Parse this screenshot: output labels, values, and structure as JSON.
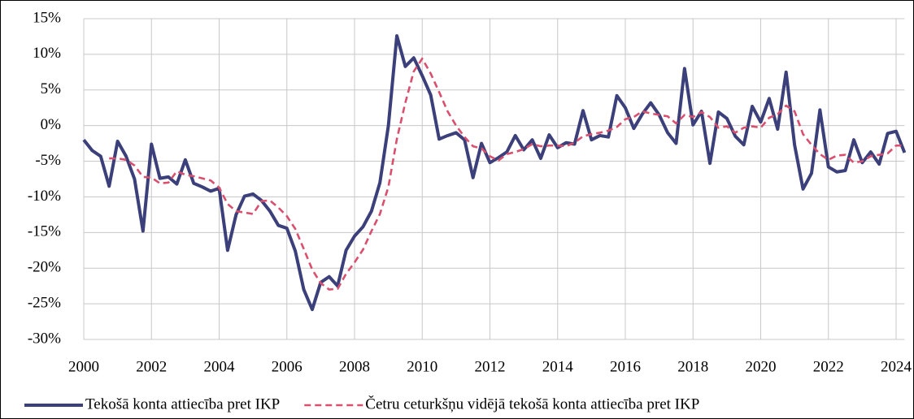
{
  "chart_data": {
    "type": "line",
    "x": [
      2000,
      2000.25,
      2000.5,
      2000.75,
      2001,
      2001.25,
      2001.5,
      2001.75,
      2002,
      2002.25,
      2002.5,
      2002.75,
      2003,
      2003.25,
      2003.5,
      2003.75,
      2004,
      2004.25,
      2004.5,
      2004.75,
      2005,
      2005.25,
      2005.5,
      2005.75,
      2006,
      2006.25,
      2006.5,
      2006.75,
      2007,
      2007.25,
      2007.5,
      2007.75,
      2008,
      2008.25,
      2008.5,
      2008.75,
      2009,
      2009.25,
      2009.5,
      2009.75,
      2010,
      2010.25,
      2010.5,
      2010.75,
      2011,
      2011.25,
      2011.5,
      2011.75,
      2012,
      2012.25,
      2012.5,
      2012.75,
      2013,
      2013.25,
      2013.5,
      2013.75,
      2014,
      2014.25,
      2014.5,
      2014.75,
      2015,
      2015.25,
      2015.5,
      2015.75,
      2016,
      2016.25,
      2016.5,
      2016.75,
      2017,
      2017.25,
      2017.5,
      2017.75,
      2018,
      2018.25,
      2018.5,
      2018.75,
      2019,
      2019.25,
      2019.5,
      2019.75,
      2020,
      2020.25,
      2020.5,
      2020.75,
      2021,
      2021.25,
      2021.5,
      2021.75,
      2022,
      2022.25,
      2022.5,
      2022.75,
      2023,
      2023.25,
      2023.5,
      2023.75,
      2024,
      2024.25
    ],
    "series": [
      {
        "name": "Tekošā konta attiecība pret IKP",
        "color": "#3b3f7a",
        "dash": false,
        "values": [
          -2,
          -3.5,
          -4.3,
          -8.5,
          -2.2,
          -4.3,
          -7.5,
          -14.8,
          -2.6,
          -7.4,
          -7.2,
          -8.2,
          -4.8,
          -8.1,
          -8.6,
          -9.2,
          -8.8,
          -17.5,
          -12.5,
          -9.9,
          -9.6,
          -10.5,
          -12,
          -14,
          -14.4,
          -17.6,
          -23,
          -25.8,
          -22,
          -21.2,
          -22.5,
          -17.5,
          -15.5,
          -14.2,
          -12,
          -8,
          0,
          12.6,
          8.3,
          9.5,
          7,
          4.3,
          -1.9,
          -1.4,
          -1,
          -2,
          -7.3,
          -2.5,
          -5.2,
          -4.5,
          -3.7,
          -1.4,
          -3.4,
          -2,
          -4.6,
          -1.3,
          -3.1,
          -2.4,
          -2.6,
          2.1,
          -2,
          -1.4,
          -1.6,
          4.2,
          2.5,
          -0.4,
          1.6,
          3.2,
          1.5,
          -1,
          -2.5,
          8,
          0.1,
          2,
          -5.3,
          1.9,
          1,
          -1.5,
          -2.7,
          2.7,
          0.5,
          3.8,
          -0.5,
          7.5,
          -2.7,
          -8.9,
          -6.7,
          2.2,
          -5.8,
          -6.5,
          -6.3,
          -2,
          -5.2,
          -3.7,
          -5.4,
          -1.1,
          -0.8,
          -3.8
        ]
      },
      {
        "name": "Četru ceturkšņu vidējā tekošā konta attiecība pret IKP",
        "color": "#d9506f",
        "dash": true,
        "values": [
          null,
          null,
          null,
          -4.6,
          -4.6,
          -4.8,
          -5.6,
          -7.2,
          -7.3,
          -8.1,
          -8,
          -6.4,
          -6.9,
          -7.1,
          -7.4,
          -7.7,
          -8.7,
          -11,
          -12,
          -12.2,
          -12.4,
          -10.6,
          -10.5,
          -11.5,
          -12.7,
          -14.5,
          -17.3,
          -20.2,
          -22.1,
          -23,
          -22.9,
          -20.8,
          -19.2,
          -17.4,
          -14.8,
          -12.4,
          -8.6,
          -1.9,
          3.2,
          7.6,
          9.4,
          7.3,
          4.7,
          2,
          0,
          -1.6,
          -2.9,
          -3.2,
          -4.3,
          -4.9,
          -4,
          -3.7,
          -3.3,
          -2.6,
          -2.9,
          -2.8,
          -2.8,
          -2.9,
          -2.4,
          -1.5,
          -1.2,
          -1,
          -0.7,
          -0.2,
          0.9,
          1.2,
          2,
          1.7,
          1.5,
          1.3,
          0.3,
          1.5,
          1.2,
          1.9,
          1.2,
          -0.3,
          -0.1,
          -1,
          -0.3,
          -0.1,
          -0.3,
          1.1,
          1.6,
          2.8,
          2,
          -1.2,
          -2.7,
          -4,
          -4.8,
          -4.2,
          -4.1,
          -5.2,
          -5,
          -4.3,
          -4.1,
          -3.9,
          -2.8,
          -2.8
        ]
      }
    ],
    "xlim": [
      2000,
      2024.25
    ],
    "xticks": [
      2000,
      2002,
      2004,
      2006,
      2008,
      2010,
      2012,
      2014,
      2016,
      2018,
      2020,
      2022,
      2024
    ],
    "ylim": [
      -30,
      15
    ],
    "yticks": [
      {
        "value": 15,
        "label": "15%"
      },
      {
        "value": 10,
        "label": "10%"
      },
      {
        "value": 5,
        "label": "5%"
      },
      {
        "value": 0,
        "label": "0%"
      },
      {
        "value": -5,
        "label": "-5%"
      },
      {
        "value": -10,
        "label": "-10%"
      },
      {
        "value": -15,
        "label": "-15%"
      },
      {
        "value": -20,
        "label": "-20%"
      },
      {
        "value": -25,
        "label": "-25%"
      },
      {
        "value": -30,
        "label": "-30%"
      }
    ],
    "grid": true,
    "legend": "bottom"
  }
}
